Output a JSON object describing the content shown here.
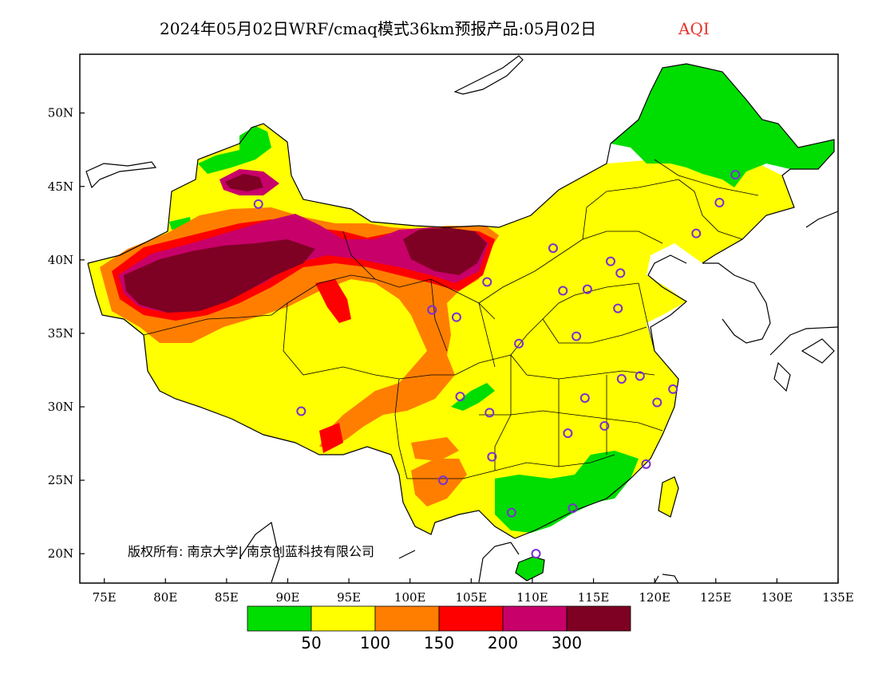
{
  "title": {
    "main": "2024年05月02日WRF/cmaq模式36km预报产品:05月02日",
    "variable": "AQI"
  },
  "map": {
    "lon_range": [
      73,
      135
    ],
    "lat_range": [
      18,
      54
    ],
    "lon_ticks": [
      "75E",
      "80E",
      "85E",
      "90E",
      "95E",
      "100E",
      "105E",
      "110E",
      "115E",
      "120E",
      "125E",
      "130E",
      "135E"
    ],
    "lat_ticks": [
      "20N",
      "25N",
      "30N",
      "35N",
      "40N",
      "45N",
      "50N"
    ],
    "copyright": "版权所有: 南京大学| 南京创蓝科技有限公司",
    "stations": [
      [
        87.6,
        43.8
      ],
      [
        126.6,
        45.8
      ],
      [
        125.3,
        43.9
      ],
      [
        123.4,
        41.8
      ],
      [
        111.7,
        40.8
      ],
      [
        116.4,
        39.9
      ],
      [
        117.2,
        39.1
      ],
      [
        106.3,
        38.5
      ],
      [
        112.5,
        37.9
      ],
      [
        114.5,
        38.0
      ],
      [
        101.8,
        36.6
      ],
      [
        103.8,
        36.1
      ],
      [
        117.0,
        36.7
      ],
      [
        108.9,
        34.3
      ],
      [
        113.6,
        34.8
      ],
      [
        117.3,
        31.9
      ],
      [
        118.8,
        32.1
      ],
      [
        121.5,
        31.2
      ],
      [
        104.1,
        30.7
      ],
      [
        106.5,
        29.6
      ],
      [
        114.3,
        30.6
      ],
      [
        120.2,
        30.3
      ],
      [
        91.1,
        29.7
      ],
      [
        112.9,
        28.2
      ],
      [
        115.9,
        28.7
      ],
      [
        106.7,
        26.6
      ],
      [
        119.3,
        26.1
      ],
      [
        102.7,
        25.0
      ],
      [
        108.3,
        22.8
      ],
      [
        113.3,
        23.1
      ],
      [
        110.3,
        20.0
      ]
    ]
  },
  "colors": {
    "c50": "#00dd00",
    "c100": "#ffff00",
    "c150": "#ff7e00",
    "c200": "#ff0000",
    "c300": "#c8006a",
    "c500": "#7e0023",
    "station": "#7b2fd0"
  },
  "legend": {
    "bins": [
      {
        "range": "0-50",
        "color": "#00dd00"
      },
      {
        "range": "50-100",
        "color": "#ffff00"
      },
      {
        "range": "100-150",
        "color": "#ff7e00"
      },
      {
        "range": "150-200",
        "color": "#ff0000"
      },
      {
        "range": "200-300",
        "color": "#c8006a"
      },
      {
        "range": ">300",
        "color": "#7e0023"
      }
    ],
    "labels": [
      "50",
      "100",
      "150",
      "200",
      "300"
    ]
  }
}
